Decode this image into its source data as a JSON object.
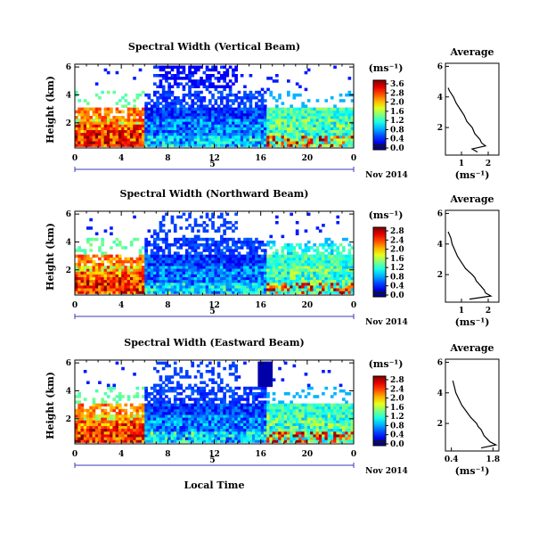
{
  "chart_data": [
    {
      "type": "heatmap",
      "title": "Spectral Width (Vertical Beam)",
      "ylabel": "Height (km)",
      "xlabel": "",
      "x_ticks": [
        "0",
        "4",
        "8",
        "12",
        "16",
        "20",
        "0"
      ],
      "y_ticks": [
        "6",
        "4",
        "2"
      ],
      "xlim": [
        0,
        24
      ],
      "ylim": [
        0.2,
        6.2
      ],
      "day_marker": "5",
      "date_label": "Nov 2014",
      "colorbar": {
        "unit": "(ms⁻¹)",
        "ticks": [
          "3.6",
          "2.8",
          "2.0",
          "1.6",
          "1.2",
          "0.8",
          "0.4",
          "0.0"
        ],
        "min": 0.0,
        "max": 3.6
      },
      "profile": {
        "title": "Average",
        "xlabel": "(ms⁻¹)",
        "x_ticks": [
          "1",
          "2"
        ],
        "y_ticks": [
          "6",
          "4",
          "2"
        ],
        "xlim": [
          0.4,
          2.4
        ],
        "ylim": [
          0.2,
          6.2
        ],
        "height": [
          0.4,
          0.6,
          0.8,
          1.0,
          1.2,
          1.4,
          1.6,
          1.8,
          2.0,
          2.4,
          2.8,
          3.2,
          3.6,
          4.0,
          4.4,
          4.6
        ],
        "value": [
          1.6,
          1.4,
          1.9,
          1.75,
          1.7,
          1.6,
          1.5,
          1.45,
          1.4,
          1.2,
          1.1,
          0.95,
          0.8,
          0.7,
          0.55,
          0.5
        ]
      }
    },
    {
      "type": "heatmap",
      "title": "Spectral Width (Northward Beam)",
      "ylabel": "Height (km)",
      "xlabel": "",
      "x_ticks": [
        "0",
        "4",
        "8",
        "12",
        "16",
        "20",
        "0"
      ],
      "y_ticks": [
        "6",
        "4",
        "2"
      ],
      "xlim": [
        0,
        24
      ],
      "ylim": [
        0.2,
        6.2
      ],
      "day_marker": "5",
      "date_label": "Nov 2014",
      "colorbar": {
        "unit": "(ms⁻¹)",
        "ticks": [
          "2.8",
          "2.4",
          "2.0",
          "1.6",
          "1.2",
          "0.8",
          "0.4",
          "0.0"
        ],
        "min": 0.0,
        "max": 2.8
      },
      "profile": {
        "title": "Average",
        "xlabel": "(ms⁻¹)",
        "x_ticks": [
          "1",
          "2"
        ],
        "y_ticks": [
          "6",
          "4",
          "2"
        ],
        "xlim": [
          0.4,
          2.4
        ],
        "ylim": [
          0.2,
          6.2
        ],
        "height": [
          0.4,
          0.6,
          0.8,
          1.0,
          1.2,
          1.4,
          1.6,
          1.8,
          2.0,
          2.4,
          2.8,
          3.2,
          3.6,
          4.0,
          4.4,
          4.8
        ],
        "value": [
          1.3,
          2.1,
          1.9,
          1.85,
          1.75,
          1.65,
          1.55,
          1.5,
          1.4,
          1.15,
          1.0,
          0.85,
          0.75,
          0.65,
          0.6,
          0.5
        ]
      }
    },
    {
      "type": "heatmap",
      "title": "Spectral Width (Eastward Beam)",
      "ylabel": "Height (km)",
      "xlabel": "Local Time",
      "x_ticks": [
        "0",
        "4",
        "8",
        "12",
        "16",
        "20",
        "0"
      ],
      "y_ticks": [
        "6",
        "4",
        "2"
      ],
      "xlim": [
        0,
        24
      ],
      "ylim": [
        0.2,
        6.2
      ],
      "day_marker": "5",
      "date_label": "Nov 2014",
      "colorbar": {
        "unit": "(ms⁻¹)",
        "ticks": [
          "2.8",
          "2.4",
          "2.0",
          "1.6",
          "1.2",
          "0.8",
          "0.4",
          "0.0"
        ],
        "min": 0.0,
        "max": 2.8
      },
      "profile": {
        "title": "Average",
        "xlabel": "(ms⁻¹)",
        "x_ticks": [
          "0.4",
          "1.8"
        ],
        "y_ticks": [
          "6",
          "4",
          "2"
        ],
        "xlim": [
          0.2,
          2.0
        ],
        "ylim": [
          0.2,
          6.2
        ],
        "height": [
          0.4,
          0.6,
          0.8,
          1.0,
          1.2,
          1.4,
          1.6,
          1.8,
          2.0,
          2.4,
          2.8,
          3.2,
          3.6,
          4.0,
          4.4,
          4.8
        ],
        "value": [
          1.4,
          1.9,
          1.7,
          1.6,
          1.5,
          1.45,
          1.4,
          1.3,
          1.25,
          1.05,
          0.9,
          0.75,
          0.65,
          0.55,
          0.5,
          0.45
        ]
      }
    }
  ]
}
